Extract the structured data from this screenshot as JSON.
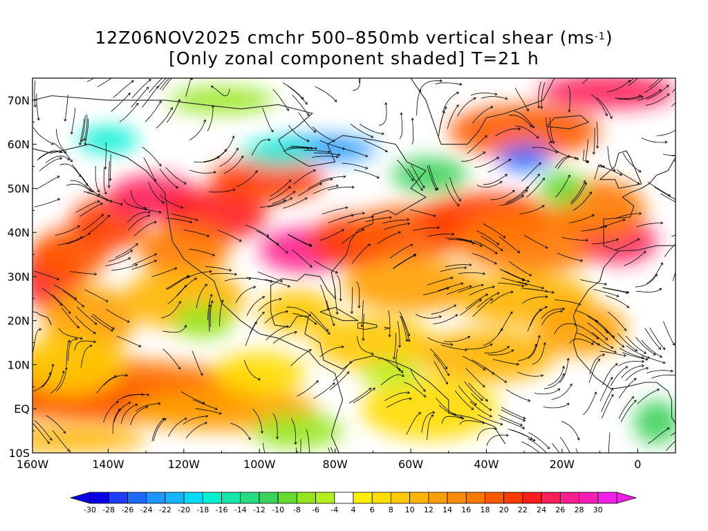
{
  "title": {
    "line1_prefix": "12Z06NOV2025 cmchr 500–850mb vertical shear (ms",
    "line1_sup": "-1",
    "line1_suffix": ")",
    "line2": "[Only zonal component shaded] T=21 h"
  },
  "map": {
    "lon_range": [
      -160,
      10
    ],
    "lat_range": [
      -10,
      75
    ],
    "lat_ticks": [
      {
        "value": 70,
        "label": "70N"
      },
      {
        "value": 60,
        "label": "60N"
      },
      {
        "value": 50,
        "label": "50N"
      },
      {
        "value": 40,
        "label": "40N"
      },
      {
        "value": 30,
        "label": "30N"
      },
      {
        "value": 20,
        "label": "20N"
      },
      {
        "value": 10,
        "label": "10N"
      },
      {
        "value": 0,
        "label": "EQ"
      },
      {
        "value": -10,
        "label": "10S"
      }
    ],
    "lon_ticks": [
      {
        "value": -160,
        "label": "160W"
      },
      {
        "value": -140,
        "label": "140W"
      },
      {
        "value": -120,
        "label": "120W"
      },
      {
        "value": -100,
        "label": "100W"
      },
      {
        "value": -80,
        "label": "80W"
      },
      {
        "value": -60,
        "label": "60W"
      },
      {
        "value": -40,
        "label": "40W"
      },
      {
        "value": -20,
        "label": "20W"
      },
      {
        "value": 0,
        "label": "0"
      }
    ],
    "shading": {
      "variable": "zonal component of vertical shear",
      "units": "ms-1",
      "description": "strong westerly shear (orange/red/magenta) along the midlatitude jet ~25-50N and near the equator in the eastern Pacific; easterly shear (green/cyan/blue) near 55-60N over Canada and the North Atlantic"
    }
  },
  "colorbar": {
    "labels": [
      "-30",
      "-28",
      "-26",
      "-24",
      "-22",
      "-20",
      "-18",
      "-16",
      "-14",
      "-12",
      "-10",
      "-8",
      "-6",
      "-4",
      "4",
      "6",
      "8",
      "10",
      "12",
      "14",
      "16",
      "18",
      "20",
      "22",
      "24",
      "26",
      "28",
      "30"
    ],
    "colors": [
      "#0a00e6",
      "#1e3cff",
      "#1c6cff",
      "#1e96ff",
      "#14b4ff",
      "#00dcfa",
      "#00f0d2",
      "#14e6aa",
      "#28dc82",
      "#3cd25a",
      "#64dc32",
      "#96e61e",
      "#b4f01e",
      "#ffffff",
      "#fff000",
      "#ffdc00",
      "#ffc800",
      "#ffb400",
      "#ffa000",
      "#ff8c00",
      "#ff7800",
      "#ff5a00",
      "#ff3c00",
      "#ff1e1e",
      "#ff1e5a",
      "#ff1e8c",
      "#ff1eb4",
      "#f01ee6"
    ],
    "low_arrow_color": "#0a00e6",
    "high_arrow_color": "#f01ee6"
  }
}
